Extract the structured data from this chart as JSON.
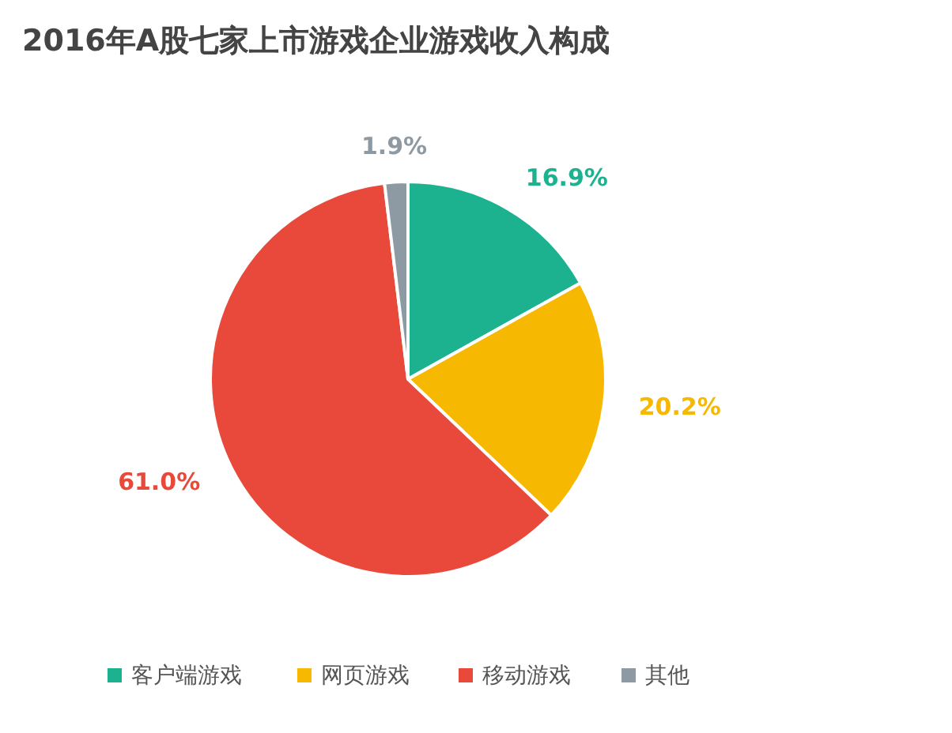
{
  "chart_data": {
    "type": "pie",
    "title": "2016年A股七家上市游戏企业游戏收入构成",
    "categories": [
      "客户端游戏",
      "网页游戏",
      "移动游戏",
      "其他"
    ],
    "values": [
      16.9,
      20.2,
      61.0,
      1.9
    ],
    "colors": [
      "#1db28f",
      "#f6b800",
      "#e8493b",
      "#8e9aa3"
    ],
    "value_labels": [
      "16.9%",
      "20.2%",
      "61.0%",
      "1.9%"
    ],
    "legend": "bottom"
  }
}
